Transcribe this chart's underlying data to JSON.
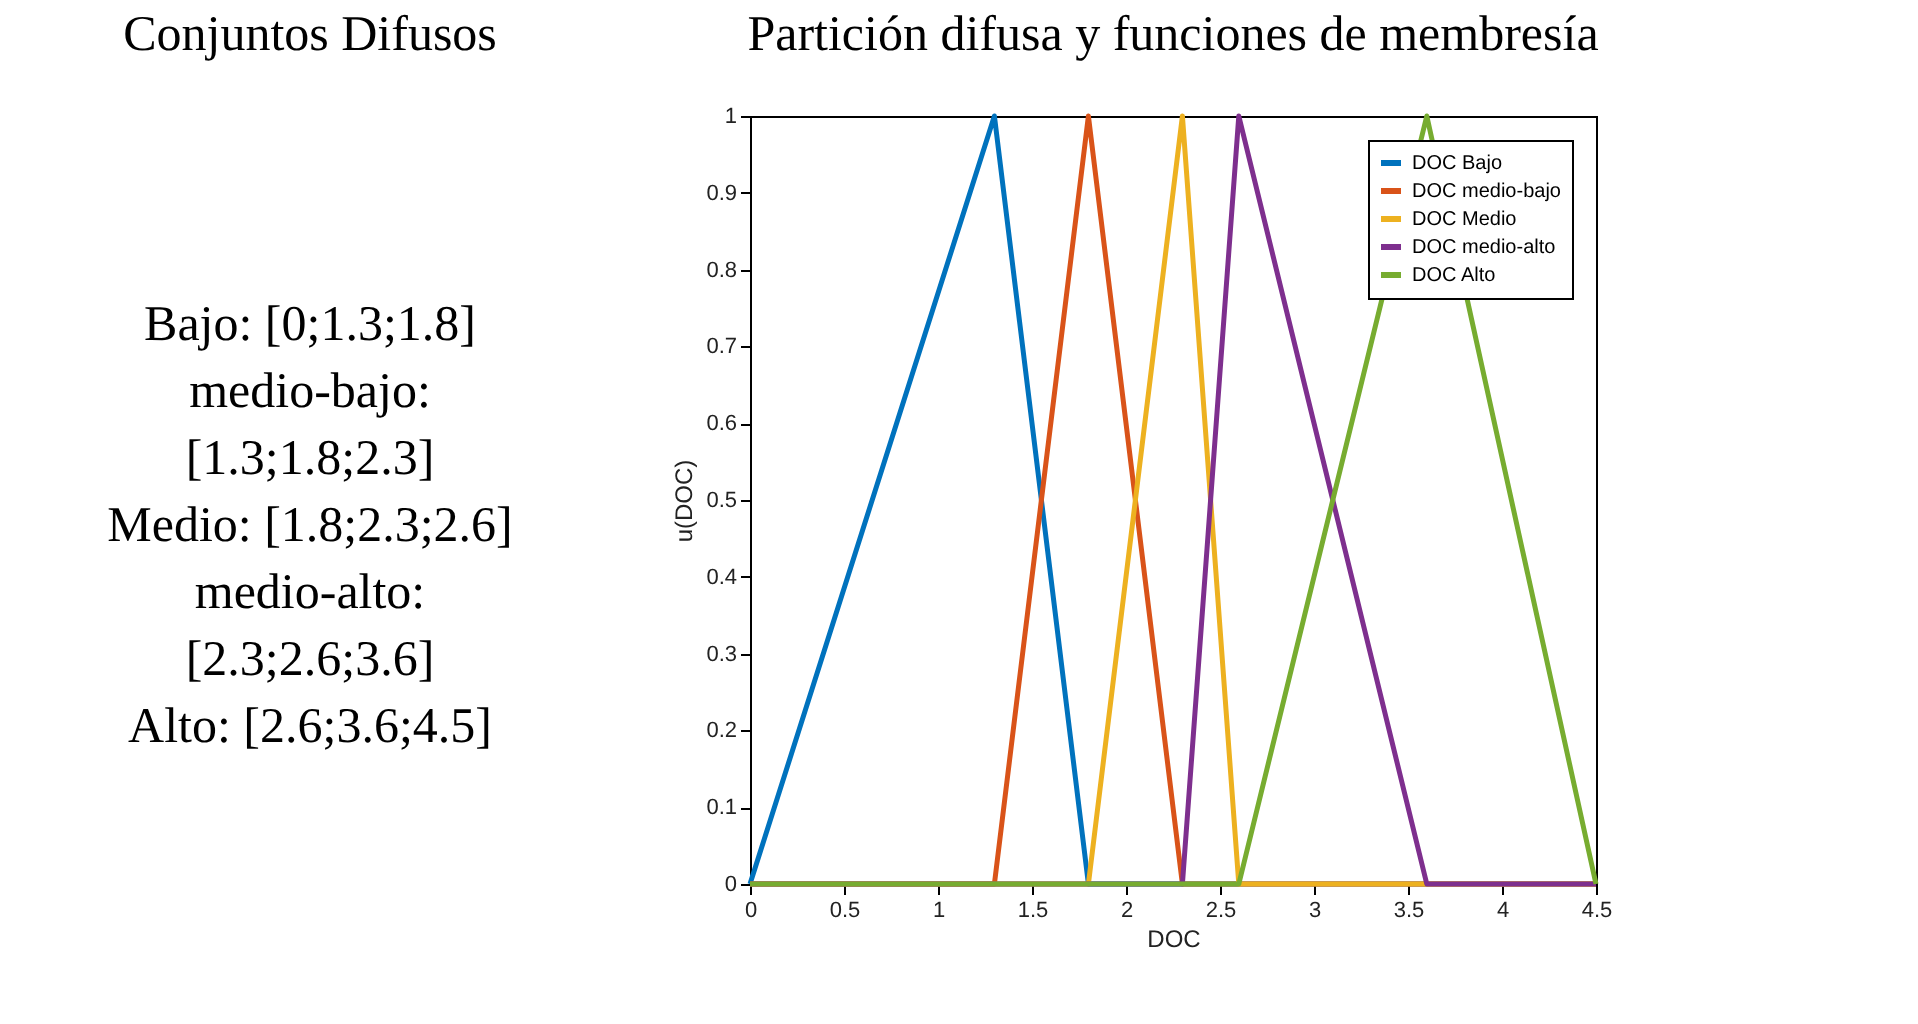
{
  "chart_data": [
    {
      "type": "other",
      "title": "Conjuntos Difusos",
      "annotations": [
        "Bajo: [0;1.3;1.8]",
        "medio-bajo:",
        "[1.3;1.8;2.3]",
        "Medio: [1.8;2.3;2.6]",
        "medio-alto:",
        "[2.3;2.6;3.6]",
        "Alto: [2.6;3.6;4.5]"
      ]
    },
    {
      "type": "line",
      "title": "Partición difusa y funciones de membresía",
      "xlabel": "DOC",
      "ylabel": "u(DOC)",
      "xlim": [
        0,
        4.5
      ],
      "ylim": [
        0,
        1
      ],
      "xticks": [
        0,
        0.5,
        1,
        1.5,
        2,
        2.5,
        3,
        3.5,
        4,
        4.5
      ],
      "yticks": [
        0,
        0.1,
        0.2,
        0.3,
        0.4,
        0.5,
        0.6,
        0.7,
        0.8,
        0.9,
        1
      ],
      "grid": false,
      "legend": "top right",
      "marker": "none",
      "line_style": "solid",
      "series": [
        {
          "name": "DOC Bajo",
          "color": "#0072bd",
          "x": [
            0,
            1.3,
            1.8,
            4.5
          ],
          "values": [
            0,
            1,
            0,
            0
          ]
        },
        {
          "name": "DOC medio-bajo",
          "color": "#d95319",
          "x": [
            0,
            1.3,
            1.8,
            2.3,
            4.5
          ],
          "values": [
            0,
            0,
            1,
            0,
            0
          ]
        },
        {
          "name": "DOC Medio",
          "color": "#edb120",
          "x": [
            0,
            1.8,
            2.3,
            2.6,
            4.5
          ],
          "values": [
            0,
            0,
            1,
            0,
            0
          ]
        },
        {
          "name": "DOC medio-alto",
          "color": "#7e2f8e",
          "x": [
            0,
            2.3,
            2.6,
            3.6,
            4.5
          ],
          "values": [
            0,
            0,
            1,
            0,
            0
          ]
        },
        {
          "name": "DOC Alto",
          "color": "#77ac30",
          "x": [
            0,
            2.6,
            3.6,
            4.5
          ],
          "values": [
            0,
            0,
            1,
            0
          ]
        }
      ]
    }
  ]
}
